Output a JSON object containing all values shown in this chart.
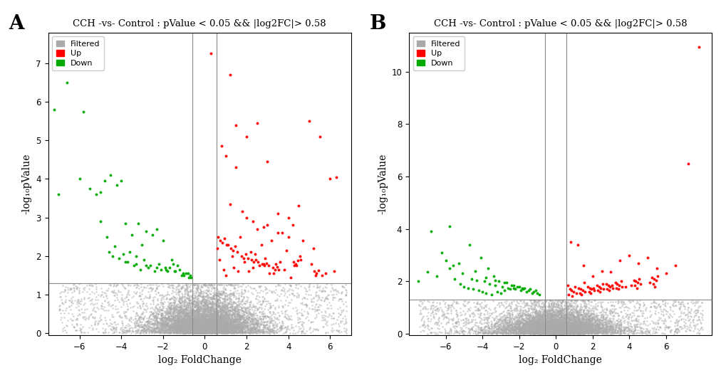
{
  "title": "CCH -vs- Control : pValue < 0.05 && |log2FC|> 0.58",
  "xlabel": "log₂ FoldChange",
  "ylabel": "-log₁₀pValue",
  "panel_A_label": "A",
  "panel_B_label": "B",
  "fc_threshold": 0.58,
  "pval_threshold": 1.301,
  "color_filtered": "#aaaaaa",
  "color_up": "#ff0000",
  "color_down": "#00aa00",
  "legend_filtered": "Filtered",
  "legend_up": "Up",
  "legend_down": "Down",
  "plot_A": {
    "xlim": [
      -7.5,
      7.0
    ],
    "ylim": [
      -0.05,
      7.8
    ],
    "xticks": [
      -6,
      -4,
      -2,
      0,
      2,
      4,
      6
    ],
    "yticks": [
      0,
      1,
      2,
      3,
      4,
      5,
      6,
      7
    ],
    "vlines": [
      -0.58,
      0.58
    ],
    "hline": 1.301
  },
  "plot_B": {
    "xlim": [
      -8.0,
      8.5
    ],
    "ylim": [
      -0.05,
      11.5
    ],
    "xticks": [
      -6,
      -4,
      -2,
      0,
      2,
      4,
      6
    ],
    "yticks": [
      0,
      2,
      4,
      6,
      8,
      10
    ],
    "vlines": [
      -0.58,
      0.58
    ],
    "hline": 1.301
  },
  "dot_size_gray": 3,
  "dot_size_colored": 8,
  "random_seed_A": 42,
  "random_seed_B": 123,
  "background_color": "#ffffff",
  "up_A_x": [
    0.3,
    1.2,
    1.5,
    2.0,
    2.5,
    3.0,
    3.5,
    4.0,
    4.5,
    5.0,
    5.5,
    6.0,
    6.3,
    0.8,
    1.0,
    1.5,
    2.0,
    2.5,
    3.0,
    3.5,
    4.0,
    1.2,
    1.8,
    2.3,
    2.8,
    0.6,
    1.1,
    1.7,
    2.2,
    2.7,
    3.2,
    3.7,
    4.2,
    4.7,
    5.2,
    0.7,
    1.3,
    1.9,
    2.4,
    2.9,
    3.4,
    3.9,
    4.4,
    5.6,
    0.9,
    1.4,
    2.1,
    2.6,
    3.1,
    3.6,
    4.1,
    4.6,
    5.1,
    5.8,
    1.0,
    1.6,
    2.3,
    2.8,
    3.3,
    3.8,
    4.3,
    5.3,
    6.2,
    0.65,
    1.05,
    1.55,
    2.05,
    2.55,
    3.05,
    3.55,
    4.55,
    0.75,
    1.25,
    1.75,
    2.25,
    2.75,
    3.25,
    4.25,
    5.25,
    0.85,
    1.35,
    1.85,
    2.35,
    2.85,
    3.35,
    4.35,
    5.35,
    0.95,
    1.45,
    1.95,
    2.45,
    2.95,
    3.45,
    4.45,
    5.45
  ],
  "up_A_y": [
    7.25,
    6.7,
    5.4,
    5.1,
    5.45,
    4.45,
    3.1,
    3.0,
    3.3,
    5.5,
    5.1,
    4.0,
    4.05,
    4.85,
    4.6,
    4.3,
    3.0,
    2.7,
    2.8,
    2.6,
    2.5,
    3.35,
    3.15,
    2.9,
    2.75,
    2.2,
    2.3,
    2.5,
    2.1,
    2.3,
    2.4,
    2.6,
    2.8,
    2.4,
    2.2,
    1.9,
    2.0,
    1.85,
    2.05,
    1.95,
    1.8,
    2.15,
    1.75,
    1.5,
    1.65,
    1.7,
    1.6,
    1.75,
    1.55,
    1.85,
    1.45,
    1.9,
    1.8,
    1.55,
    1.5,
    1.6,
    1.7,
    1.8,
    1.55,
    1.65,
    1.75,
    1.5,
    1.6,
    2.5,
    2.3,
    2.1,
    1.95,
    1.85,
    1.75,
    1.65,
    2.0,
    2.4,
    2.2,
    2.0,
    1.9,
    1.8,
    1.7,
    1.85,
    1.6,
    2.35,
    2.15,
    1.95,
    1.85,
    1.75,
    1.65,
    1.8,
    1.55,
    2.45,
    2.25,
    2.05,
    1.9,
    1.82,
    1.72,
    1.88,
    1.62
  ],
  "down_A_x": [
    -7.2,
    -6.6,
    -5.8,
    -5.0,
    -4.8,
    -4.5,
    -4.2,
    -4.0,
    -3.8,
    -3.5,
    -3.2,
    -3.0,
    -2.8,
    -2.5,
    -2.3,
    -2.0,
    -1.8,
    -1.5,
    -1.2,
    -1.0,
    -6.0,
    -5.5,
    -5.2,
    -4.7,
    -4.3,
    -3.9,
    -3.6,
    -3.3,
    -2.9,
    -2.6,
    -2.2,
    -1.9,
    -1.6,
    -1.3,
    -0.9,
    -0.75,
    -5.0,
    -4.6,
    -4.1,
    -3.7,
    -3.4,
    -3.1,
    -2.7,
    -2.4,
    -2.1,
    -1.7,
    -1.4,
    -1.1,
    -0.8,
    -0.65,
    -7.0,
    -4.4,
    -3.8,
    -3.3,
    -2.8,
    -2.3,
    -1.85,
    -1.45,
    -1.05,
    -0.7
  ],
  "down_A_y": [
    5.8,
    6.5,
    5.75,
    3.65,
    3.95,
    4.1,
    3.85,
    3.95,
    2.85,
    2.55,
    2.85,
    2.3,
    2.65,
    2.55,
    2.7,
    2.4,
    1.6,
    1.8,
    1.65,
    1.5,
    4.0,
    3.75,
    3.6,
    2.5,
    2.25,
    2.05,
    2.1,
    2.0,
    1.9,
    1.75,
    1.8,
    1.7,
    1.9,
    1.75,
    1.55,
    1.45,
    2.9,
    2.1,
    1.95,
    1.85,
    1.75,
    1.65,
    1.7,
    1.6,
    1.65,
    1.7,
    1.6,
    1.5,
    1.55,
    1.45,
    3.6,
    2.0,
    1.85,
    1.8,
    1.75,
    1.7,
    1.65,
    1.6,
    1.55,
    1.5
  ],
  "up_B_x": [
    7.8,
    7.2,
    0.8,
    1.2,
    1.5,
    2.0,
    2.5,
    3.0,
    3.5,
    4.0,
    4.5,
    5.0,
    5.5,
    6.0,
    6.5,
    0.65,
    1.05,
    1.55,
    2.05,
    2.55,
    3.05,
    3.55,
    4.55,
    5.55,
    0.75,
    1.25,
    1.75,
    2.25,
    2.75,
    3.25,
    4.25,
    5.25,
    0.85,
    1.35,
    1.85,
    2.35,
    2.85,
    3.35,
    4.35,
    5.35,
    0.95,
    1.45,
    1.95,
    2.45,
    2.95,
    3.45,
    4.45,
    5.45,
    1.1,
    1.6,
    2.1,
    2.6,
    3.1,
    3.6,
    4.1,
    4.6,
    5.1,
    0.7,
    1.3,
    1.8,
    2.3,
    2.8,
    3.3,
    3.8,
    4.3,
    5.3,
    0.9,
    1.4,
    1.9,
    2.4,
    2.9,
    3.4,
    4.4,
    5.4
  ],
  "up_B_y": [
    10.95,
    6.5,
    3.5,
    3.4,
    2.6,
    2.2,
    2.4,
    2.35,
    2.8,
    3.0,
    2.7,
    2.9,
    2.5,
    2.3,
    2.6,
    1.85,
    1.8,
    1.95,
    1.75,
    1.9,
    1.85,
    2.0,
    2.1,
    2.2,
    1.7,
    1.75,
    1.8,
    1.85,
    1.9,
    1.95,
    2.05,
    2.15,
    1.65,
    1.7,
    1.75,
    1.8,
    1.85,
    1.9,
    2.0,
    2.1,
    1.6,
    1.65,
    1.7,
    1.75,
    1.8,
    1.85,
    1.95,
    2.05,
    1.55,
    1.6,
    1.65,
    1.7,
    1.75,
    1.8,
    1.85,
    1.9,
    1.95,
    1.5,
    1.55,
    1.6,
    1.65,
    1.7,
    1.75,
    1.8,
    1.85,
    1.9,
    1.45,
    1.5,
    1.55,
    1.6,
    1.65,
    1.7,
    1.75,
    1.8
  ],
  "down_B_x": [
    -7.5,
    -7.0,
    -6.5,
    -6.0,
    -5.8,
    -5.5,
    -5.2,
    -5.0,
    -4.8,
    -4.5,
    -4.2,
    -4.0,
    -3.8,
    -3.5,
    -3.2,
    -3.0,
    -2.8,
    -2.5,
    -2.3,
    -2.0,
    -1.8,
    -1.5,
    -1.2,
    -1.0,
    -6.8,
    -6.2,
    -5.6,
    -5.1,
    -4.6,
    -4.3,
    -3.9,
    -3.6,
    -3.3,
    -2.9,
    -2.6,
    -2.2,
    -1.9,
    -1.6,
    -1.3,
    -0.9,
    -5.8,
    -4.7,
    -4.1,
    -3.7,
    -3.4,
    -3.1,
    -2.7,
    -2.4,
    -2.1,
    -1.7,
    -1.4,
    -1.1,
    -5.3,
    -4.4,
    -3.8,
    -3.3,
    -2.8,
    -2.3,
    -1.85
  ],
  "down_B_y": [
    2.0,
    2.35,
    2.2,
    2.8,
    2.5,
    2.1,
    1.9,
    1.8,
    1.75,
    1.7,
    1.65,
    1.6,
    1.55,
    1.5,
    1.6,
    1.55,
    1.65,
    1.7,
    1.75,
    1.8,
    1.7,
    1.65,
    1.6,
    1.55,
    3.9,
    3.1,
    2.6,
    2.3,
    2.1,
    2.05,
    2.0,
    1.9,
    1.85,
    1.8,
    1.75,
    1.7,
    1.65,
    1.6,
    1.55,
    1.5,
    4.1,
    3.4,
    2.9,
    2.5,
    2.2,
    2.0,
    1.95,
    1.85,
    1.8,
    1.75,
    1.7,
    1.65,
    2.7,
    2.4,
    2.15,
    2.05,
    1.95,
    1.85,
    1.75
  ]
}
